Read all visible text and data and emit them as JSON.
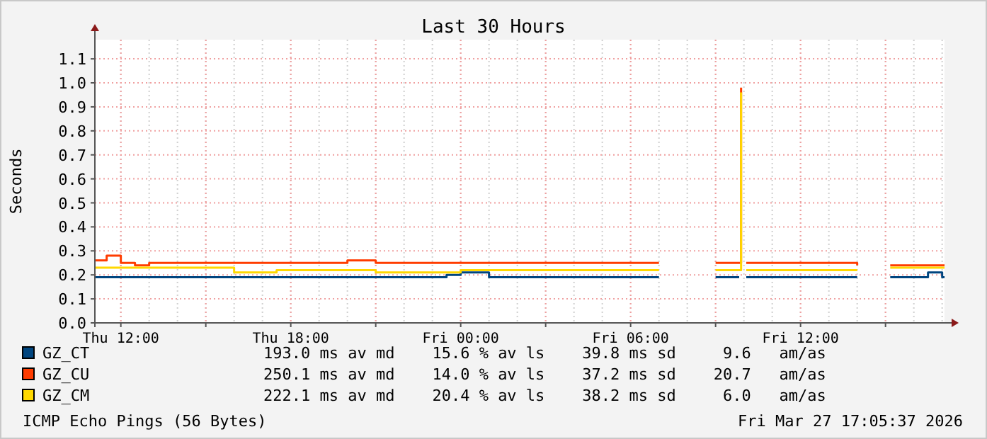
{
  "chart_data": {
    "type": "step",
    "title": "Last 30 Hours",
    "ylabel": "Seconds",
    "x": [
      "2026-03-26T11:05",
      "2026-03-26T11:30",
      "2026-03-26T12:00",
      "2026-03-26T12:30",
      "2026-03-26T13:00",
      "2026-03-26T14:00",
      "2026-03-26T15:00",
      "2026-03-26T16:00",
      "2026-03-26T17:00",
      "2026-03-26T17:30",
      "2026-03-26T18:00",
      "2026-03-26T19:00",
      "2026-03-26T20:00",
      "2026-03-26T21:00",
      "2026-03-26T22:00",
      "2026-03-26T23:00",
      "2026-03-26T23:30",
      "2026-03-27T00:00",
      "2026-03-27T01:00",
      "2026-03-27T02:00",
      "2026-03-27T03:00",
      "2026-03-27T04:00",
      "2026-03-27T05:00",
      "2026-03-27T06:00",
      "2026-03-27T07:00",
      "2026-03-27T07:10",
      "2026-03-27T09:00",
      "2026-03-27T09:50",
      "2026-03-27T09:54",
      "2026-03-27T10:00",
      "2026-03-27T10:05",
      "2026-03-27T11:00",
      "2026-03-27T12:00",
      "2026-03-27T13:00",
      "2026-03-27T14:00",
      "2026-03-27T14:12",
      "2026-03-27T15:10",
      "2026-03-27T16:00",
      "2026-03-27T16:30",
      "2026-03-27T17:00",
      "2026-03-27T17:05"
    ],
    "series": [
      {
        "name": "GZ_CT",
        "color": "#00457f",
        "values": [
          0.19,
          0.19,
          0.19,
          0.19,
          0.19,
          0.19,
          0.19,
          0.19,
          0.19,
          0.19,
          0.19,
          0.19,
          0.19,
          0.19,
          0.19,
          0.19,
          0.2,
          0.21,
          0.19,
          0.19,
          0.19,
          0.19,
          0.19,
          0.19,
          0.19,
          null,
          0.19,
          0.19,
          null,
          null,
          0.19,
          0.19,
          0.19,
          0.19,
          0.19,
          null,
          0.19,
          0.19,
          0.21,
          0.19,
          0.19
        ]
      },
      {
        "name": "GZ_CU",
        "color": "#ff3c00",
        "values": [
          0.26,
          0.28,
          0.25,
          0.24,
          0.25,
          0.25,
          0.25,
          0.25,
          0.25,
          0.25,
          0.25,
          0.25,
          0.26,
          0.25,
          0.25,
          0.25,
          0.25,
          0.25,
          0.25,
          0.25,
          0.25,
          0.25,
          0.25,
          0.25,
          0.25,
          null,
          0.25,
          0.25,
          0.98,
          null,
          0.25,
          0.25,
          0.25,
          0.25,
          0.24,
          null,
          0.24,
          0.24,
          0.24,
          0.24,
          0.24
        ]
      },
      {
        "name": "GZ_CM",
        "color": "#ffd800",
        "values": [
          0.23,
          0.23,
          0.23,
          0.23,
          0.23,
          0.23,
          0.23,
          0.21,
          0.21,
          0.22,
          0.22,
          0.22,
          0.22,
          0.21,
          0.21,
          0.21,
          0.21,
          0.22,
          0.22,
          0.22,
          0.22,
          0.22,
          0.22,
          0.22,
          0.22,
          null,
          0.22,
          0.22,
          0.96,
          null,
          0.22,
          0.22,
          0.22,
          0.22,
          0.22,
          null,
          0.23,
          0.23,
          0.23,
          0.23,
          0.23
        ]
      }
    ],
    "xlim": [
      "2026-03-26T11:05",
      "2026-03-27T17:05"
    ],
    "xticks": [
      {
        "value": "2026-03-26T12:00",
        "label": "Thu 12:00"
      },
      {
        "value": "2026-03-26T15:00",
        "label": null
      },
      {
        "value": "2026-03-26T18:00",
        "label": "Thu 18:00"
      },
      {
        "value": "2026-03-26T21:00",
        "label": null
      },
      {
        "value": "2026-03-27T00:00",
        "label": "Fri 00:00"
      },
      {
        "value": "2026-03-27T03:00",
        "label": null
      },
      {
        "value": "2026-03-27T06:00",
        "label": "Fri 06:00"
      },
      {
        "value": "2026-03-27T09:00",
        "label": null
      },
      {
        "value": "2026-03-27T12:00",
        "label": "Fri 12:00"
      },
      {
        "value": "2026-03-27T15:00",
        "label": null
      }
    ],
    "ylim": [
      0,
      1.18
    ],
    "yticks": [
      {
        "value": 0,
        "label": "0.0"
      },
      {
        "value": 0.1,
        "label": "0.1"
      },
      {
        "value": 0.2,
        "label": "0.2"
      },
      {
        "value": 0.3,
        "label": "0.3"
      },
      {
        "value": 0.4,
        "label": "0.4"
      },
      {
        "value": 0.5,
        "label": "0.5"
      },
      {
        "value": 0.6,
        "label": "0.6"
      },
      {
        "value": 0.7,
        "label": "0.7"
      },
      {
        "value": 0.8,
        "label": "0.8"
      },
      {
        "value": 0.9,
        "label": "0.9"
      },
      {
        "value": 1.0,
        "label": "1.0"
      },
      {
        "value": 1.1,
        "label": "1.1"
      }
    ],
    "grid": true,
    "legend": "bottom left",
    "annotations": [
      "193.0 ms av md    15.6 % av ls    39.8 ms sd     9.6   am/as",
      "250.1 ms av md    14.0 % av ls    37.2 ms sd    20.7   am/as",
      "222.1 ms av md    20.4 % av ls    38.2 ms sd     6.0   am/as",
      "ICMP Echo Pings (56 Bytes)",
      "Fri Mar 27 17:05:37 2026"
    ]
  }
}
